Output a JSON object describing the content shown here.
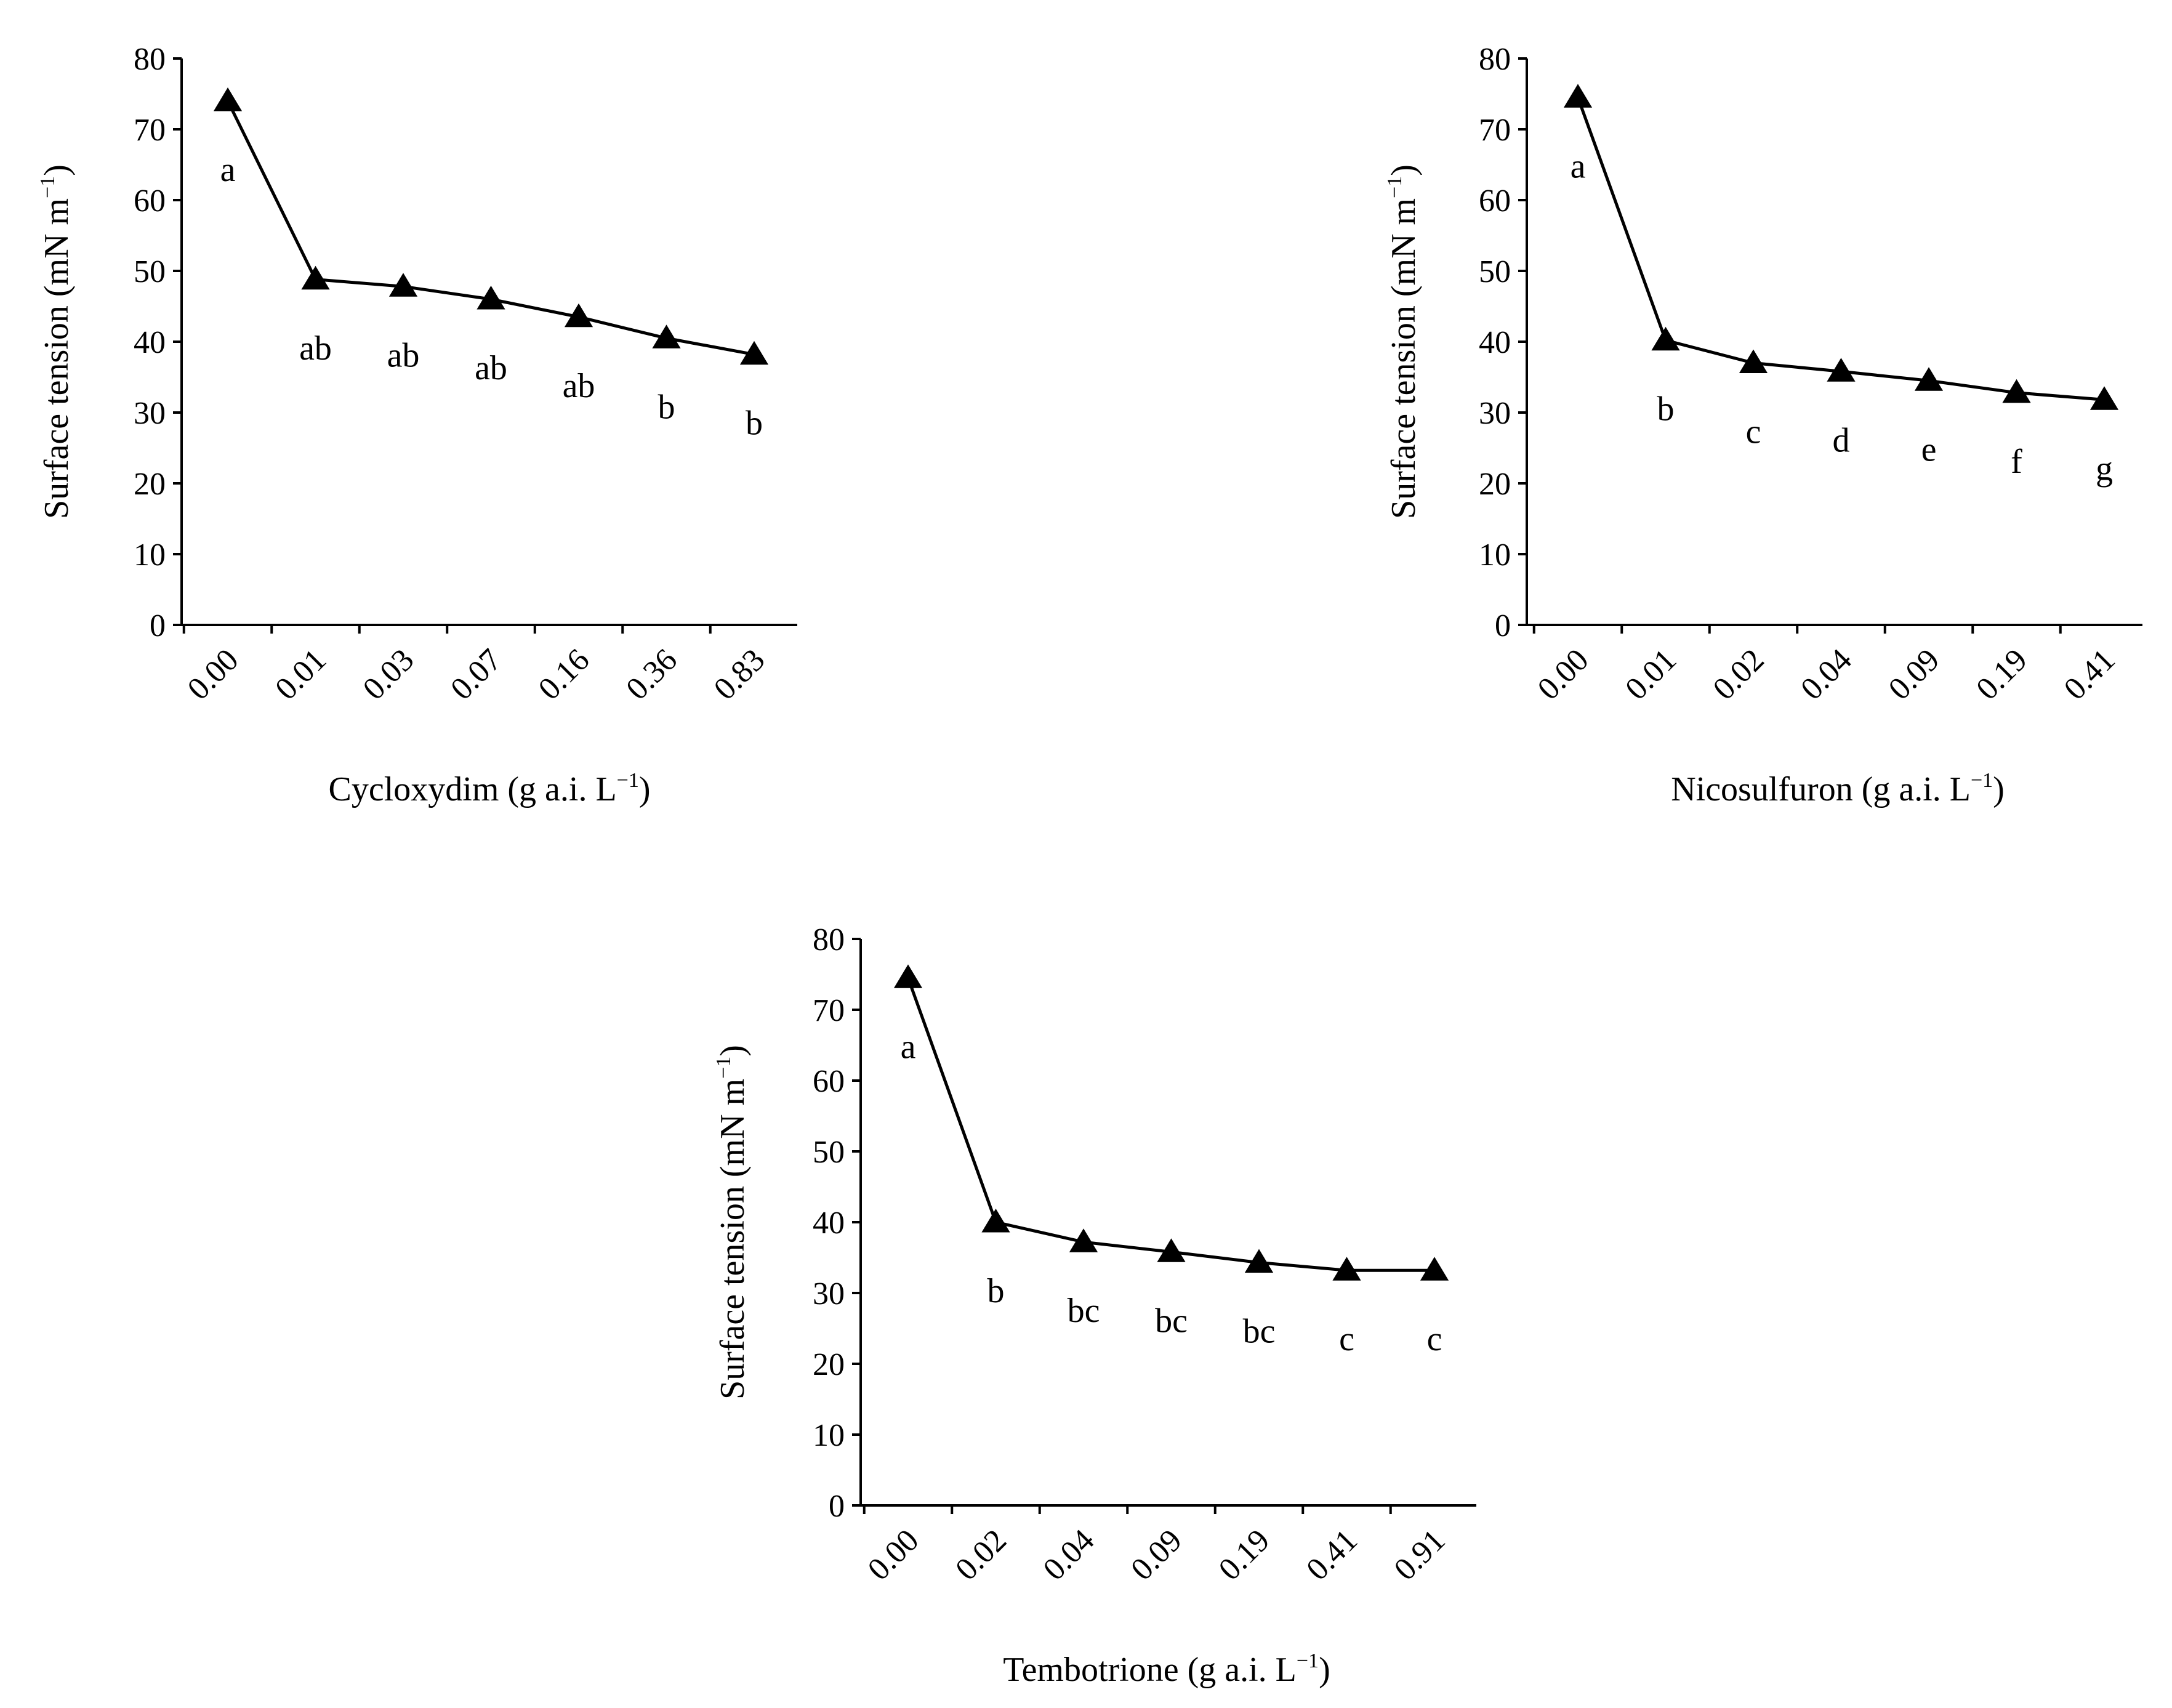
{
  "figure": {
    "colors": {
      "ink": "#000000",
      "background": "#ffffff"
    }
  },
  "chart_data": [
    {
      "type": "line",
      "id": "cycloxydim",
      "categories": [
        "0.00",
        "0.01",
        "0.03",
        "0.07",
        "0.16",
        "0.36",
        "0.83"
      ],
      "values": [
        74,
        48.8,
        47.8,
        46,
        43.5,
        40.5,
        38.2
      ],
      "significance_letters": [
        "a",
        "ab",
        "ab",
        "ab",
        "ab",
        "b",
        "b"
      ],
      "xlabel_main": "Cycloxydim (g a.i. L",
      "xlabel_sup": "−1",
      "xlabel_end": ")",
      "ylabel_main": "Surface tension (mN m",
      "ylabel_sup": "−1",
      "ylabel_end": ")",
      "ylim": [
        0,
        80
      ],
      "yticks": [
        0,
        10,
        20,
        30,
        40,
        50,
        60,
        70,
        80
      ],
      "marker": "triangle"
    },
    {
      "type": "line",
      "id": "nicosulfuron",
      "categories": [
        "0.00",
        "0.01",
        "0.02",
        "0.04",
        "0.09",
        "0.19",
        "0.41"
      ],
      "values": [
        74.5,
        40.2,
        37,
        35.8,
        34.5,
        32.8,
        31.8
      ],
      "significance_letters": [
        "a",
        "b",
        "c",
        "d",
        "e",
        "f",
        "g"
      ],
      "xlabel_main": "Nicosulfuron (g a.i. L",
      "xlabel_sup": "−1",
      "xlabel_end": ")",
      "ylabel_main": "Surface tension (mN m",
      "ylabel_sup": "−1",
      "ylabel_end": ")",
      "ylim": [
        0,
        80
      ],
      "yticks": [
        0,
        10,
        20,
        30,
        40,
        50,
        60,
        70,
        80
      ],
      "marker": "triangle"
    },
    {
      "type": "line",
      "id": "tembotrione",
      "categories": [
        "0.00",
        "0.02",
        "0.04",
        "0.09",
        "0.19",
        "0.41",
        "0.91"
      ],
      "values": [
        74.5,
        40,
        37.2,
        35.8,
        34.3,
        33.2,
        33.2
      ],
      "significance_letters": [
        "a",
        "b",
        "bc",
        "bc",
        "bc",
        "c",
        "c"
      ],
      "xlabel_main": "Tembotrione (g a.i. L",
      "xlabel_sup": "−1",
      "xlabel_end": ")",
      "ylabel_main": "Surface tension (mN m",
      "ylabel_sup": "−1",
      "ylabel_end": ")",
      "ylim": [
        0,
        80
      ],
      "yticks": [
        0,
        10,
        20,
        30,
        40,
        50,
        60,
        70,
        80
      ],
      "marker": "triangle"
    }
  ]
}
